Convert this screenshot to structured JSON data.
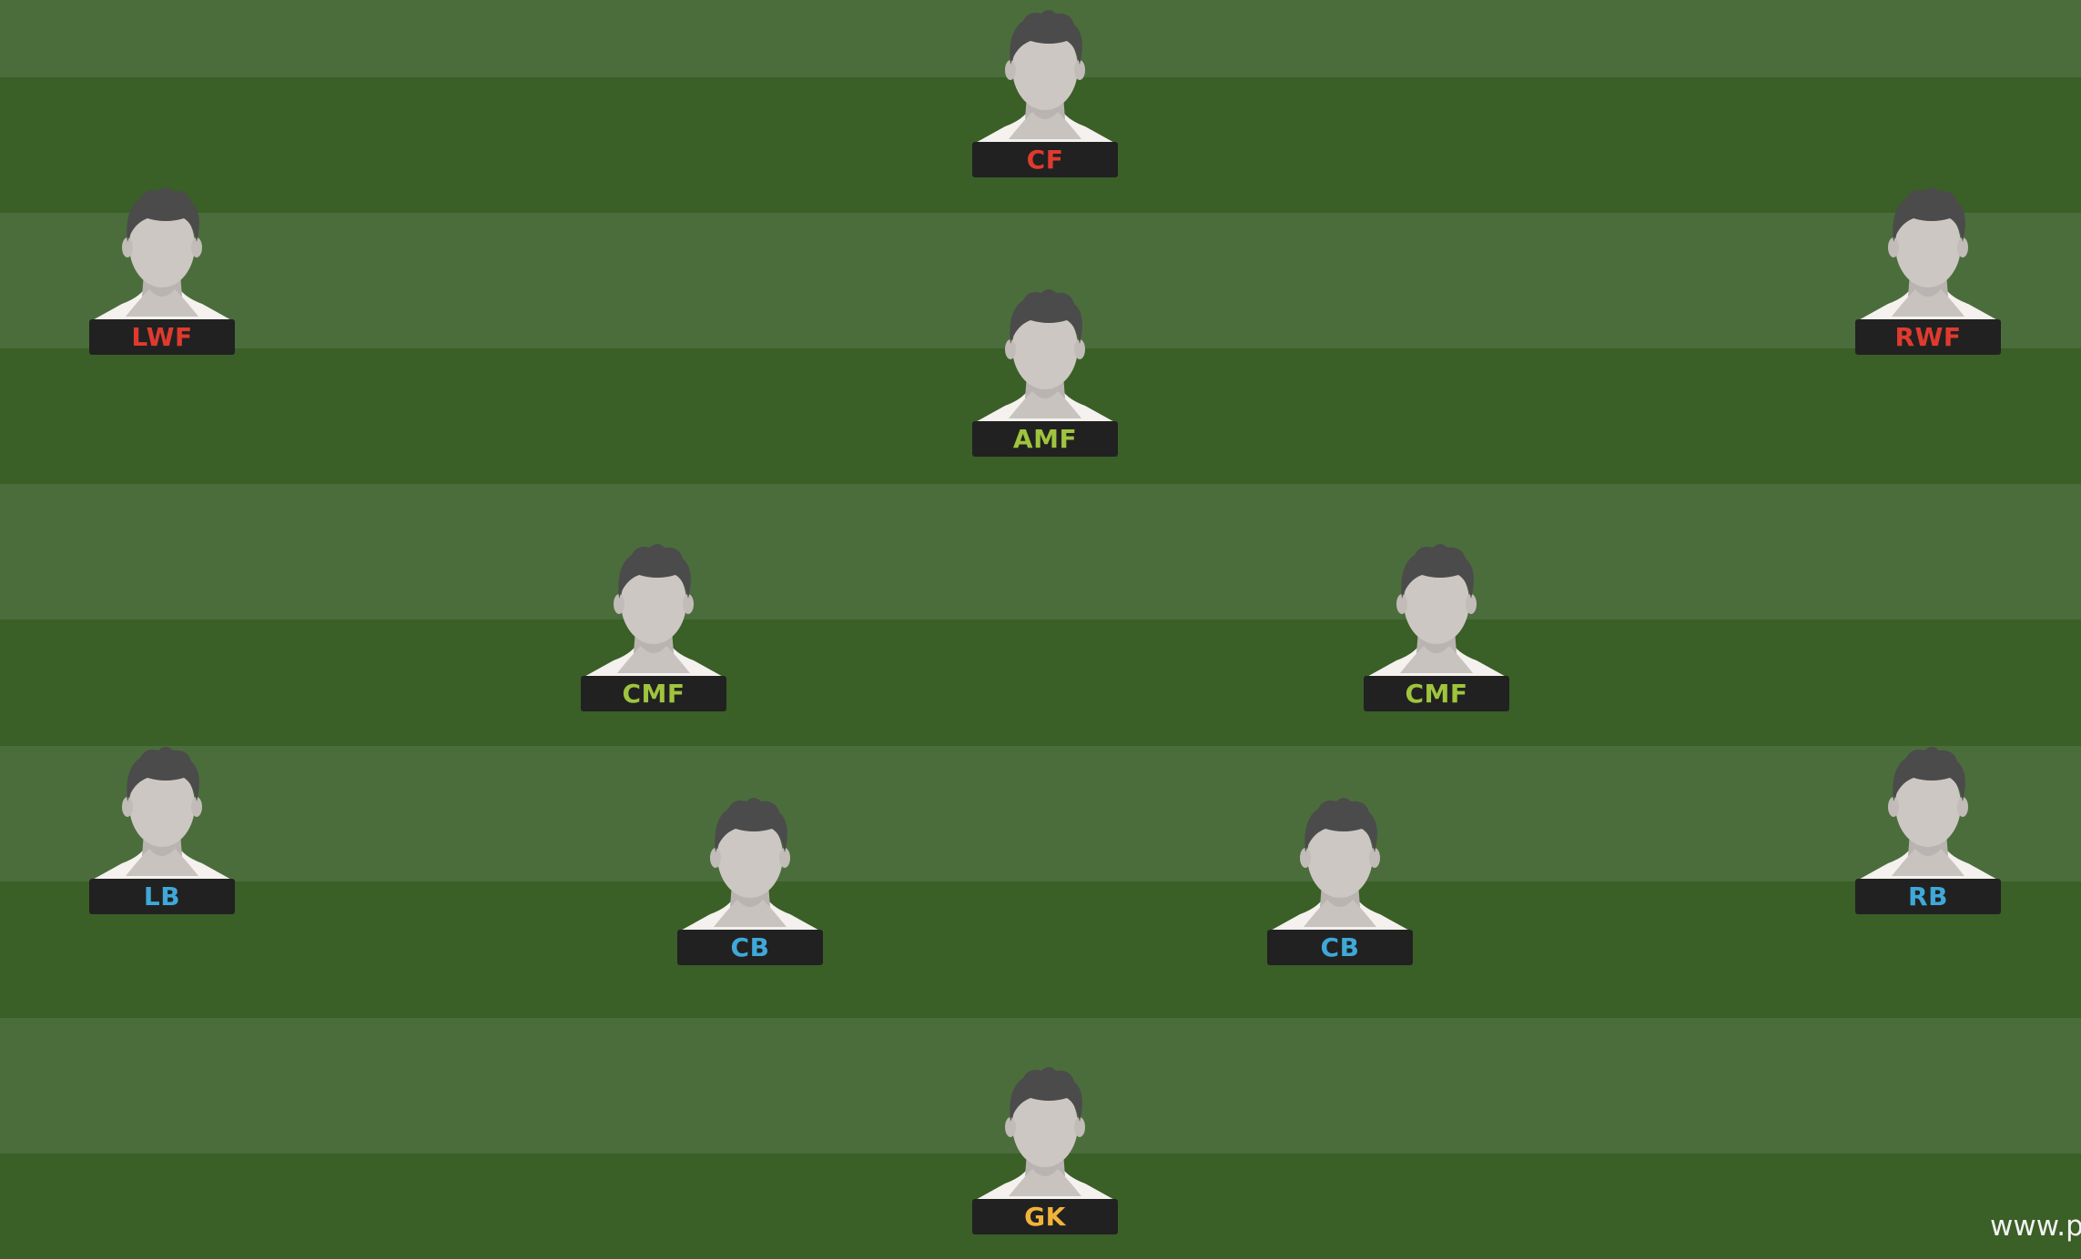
{
  "colors": {
    "stripe_light": "#4b6d3c",
    "stripe_dark": "#3a5f27",
    "label_bg": "#212121",
    "forward": "#e03a2f",
    "midfielder": "#9fc43d",
    "defender": "#3fa8d8",
    "goalkeeper": "#f2b33a"
  },
  "icons": {
    "player": "player-silhouette-icon"
  },
  "players": [
    {
      "id": "cf",
      "position": "CF",
      "role": "forward"
    },
    {
      "id": "lwf",
      "position": "LWF",
      "role": "forward"
    },
    {
      "id": "rwf",
      "position": "RWF",
      "role": "forward"
    },
    {
      "id": "amf",
      "position": "AMF",
      "role": "midfielder"
    },
    {
      "id": "cmf-left",
      "position": "CMF",
      "role": "midfielder"
    },
    {
      "id": "cmf-right",
      "position": "CMF",
      "role": "midfielder"
    },
    {
      "id": "lb",
      "position": "LB",
      "role": "defender"
    },
    {
      "id": "cb-left",
      "position": "CB",
      "role": "defender"
    },
    {
      "id": "cb-right",
      "position": "CB",
      "role": "defender"
    },
    {
      "id": "rb",
      "position": "RB",
      "role": "defender"
    },
    {
      "id": "gk",
      "position": "GK",
      "role": "goalkeeper"
    }
  ],
  "watermark": "www.p"
}
